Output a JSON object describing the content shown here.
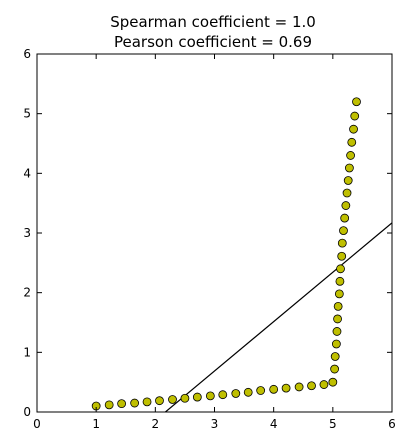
{
  "chart_data": {
    "type": "scatter",
    "title_lines": [
      "Spearman coefficient = 1.0",
      "Pearson coefficient = 0.69"
    ],
    "xlabel": "",
    "ylabel": "",
    "xlim": [
      0,
      6
    ],
    "ylim": [
      0,
      6
    ],
    "x_ticks": [
      0,
      1,
      2,
      3,
      4,
      5,
      6
    ],
    "y_ticks": [
      0,
      1,
      2,
      3,
      4,
      5,
      6
    ],
    "grid": false,
    "marker_color": "#bfbf00",
    "fit_line_color": "#000000",
    "points": [
      [
        1.0,
        0.1
      ],
      [
        1.22,
        0.12
      ],
      [
        1.43,
        0.14
      ],
      [
        1.65,
        0.15
      ],
      [
        1.86,
        0.17
      ],
      [
        2.07,
        0.19
      ],
      [
        2.29,
        0.21
      ],
      [
        2.5,
        0.23
      ],
      [
        2.71,
        0.25
      ],
      [
        2.93,
        0.27
      ],
      [
        3.14,
        0.29
      ],
      [
        3.36,
        0.31
      ],
      [
        3.57,
        0.33
      ],
      [
        3.78,
        0.36
      ],
      [
        4.0,
        0.38
      ],
      [
        4.21,
        0.4
      ],
      [
        4.43,
        0.42
      ],
      [
        4.64,
        0.44
      ],
      [
        4.85,
        0.46
      ],
      [
        5.0,
        0.5
      ],
      [
        5.03,
        0.72
      ],
      [
        5.04,
        0.93
      ],
      [
        5.06,
        1.14
      ],
      [
        5.07,
        1.35
      ],
      [
        5.08,
        1.56
      ],
      [
        5.09,
        1.77
      ],
      [
        5.11,
        1.98
      ],
      [
        5.12,
        2.19
      ],
      [
        5.13,
        2.4
      ],
      [
        5.15,
        2.61
      ],
      [
        5.16,
        2.83
      ],
      [
        5.18,
        3.04
      ],
      [
        5.2,
        3.25
      ],
      [
        5.22,
        3.46
      ],
      [
        5.24,
        3.67
      ],
      [
        5.26,
        3.88
      ],
      [
        5.28,
        4.09
      ],
      [
        5.3,
        4.3
      ],
      [
        5.32,
        4.52
      ],
      [
        5.35,
        4.74
      ],
      [
        5.37,
        4.96
      ],
      [
        5.4,
        5.2
      ]
    ],
    "fit_line": {
      "x": [
        2.17,
        6.0
      ],
      "y": [
        0.0,
        3.17
      ]
    }
  }
}
